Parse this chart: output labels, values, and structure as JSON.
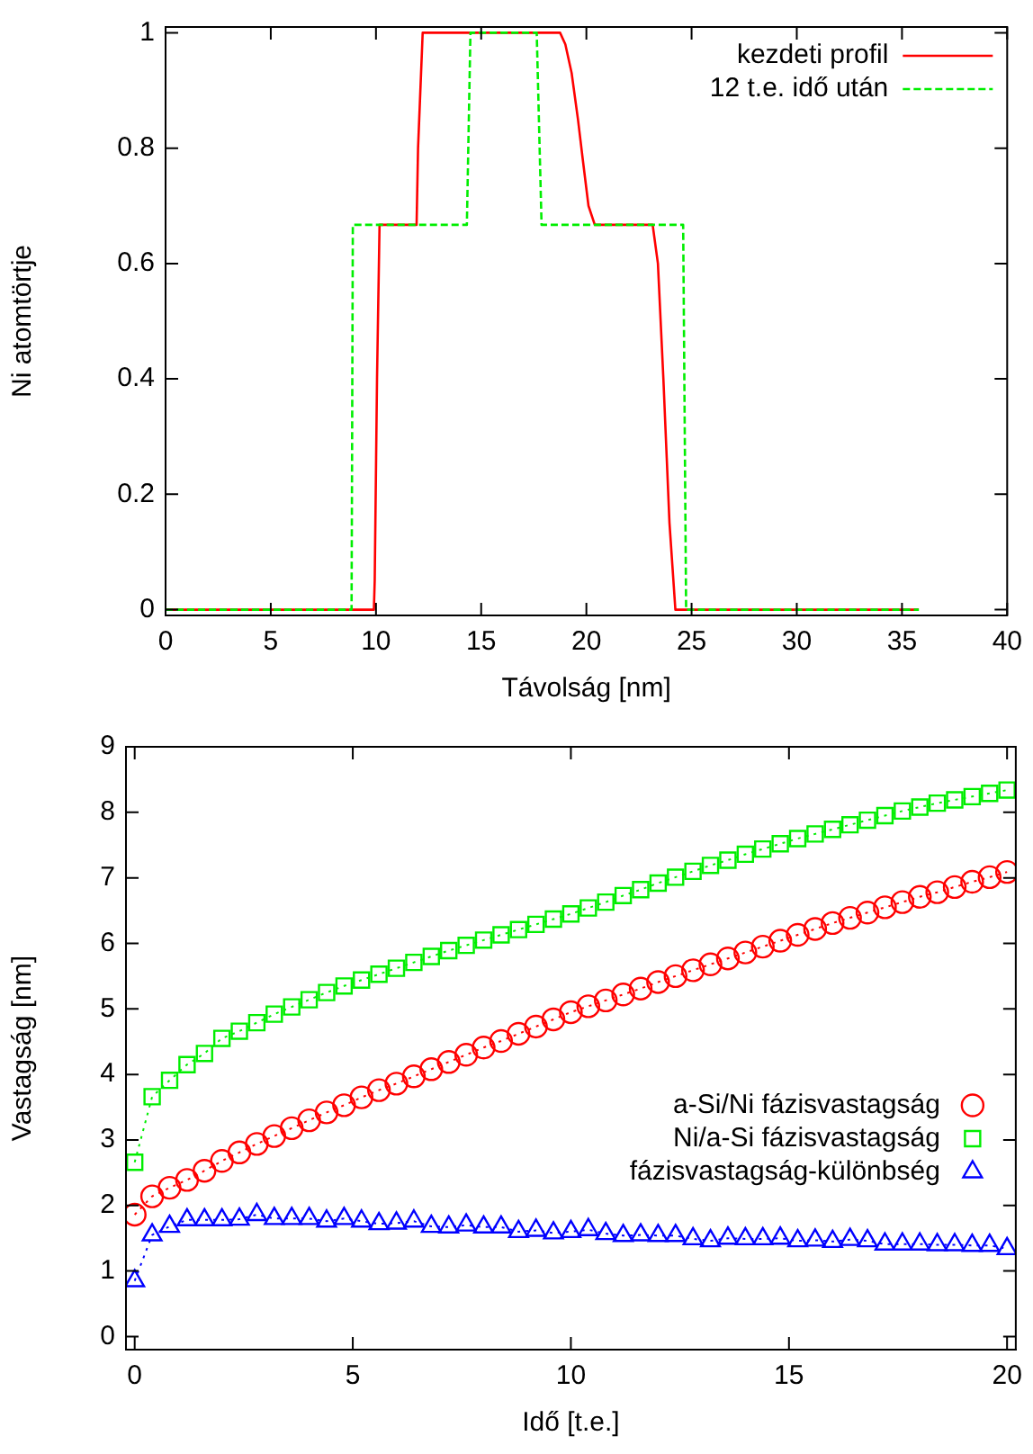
{
  "chart_data": [
    {
      "type": "line",
      "xlabel": "Távolság [nm]",
      "ylabel": "Ni atomtörtje",
      "xlim": [
        0,
        40
      ],
      "ylim": [
        -0.01,
        1.01
      ],
      "xticks": [
        0,
        5,
        10,
        15,
        20,
        25,
        30,
        35,
        40
      ],
      "yticks": [
        0,
        0.2,
        0.4,
        0.6,
        0.8,
        1
      ],
      "grid": false,
      "legend": "top right",
      "marker": "none",
      "series": [
        {
          "name": "kezdeti profil",
          "color": "#ff0000",
          "line_style": "solid",
          "x": [
            0,
            9.9,
            9.94,
            10.05,
            10.17,
            11.93,
            12.0,
            12.22,
            18.75,
            19.0,
            19.3,
            19.6,
            19.83,
            20.1,
            20.4,
            23.15,
            23.4,
            23.66,
            23.95,
            24.23,
            35.8
          ],
          "values": [
            0,
            0,
            0.05,
            0.4,
            0.667,
            0.667,
            0.8,
            1,
            1,
            0.98,
            0.93,
            0.85,
            0.78,
            0.7,
            0.667,
            0.667,
            0.6,
            0.4,
            0.15,
            0,
            0
          ]
        },
        {
          "name": "12 t.e. idő után",
          "color": "#00ee00",
          "line_style": "dashed",
          "x": [
            0,
            8.84,
            8.9,
            14.32,
            14.49,
            17.64,
            17.87,
            24.6,
            24.74,
            35.8
          ],
          "values": [
            0,
            0,
            0.667,
            0.667,
            1,
            1,
            0.667,
            0.667,
            0,
            0
          ]
        }
      ]
    },
    {
      "type": "line",
      "xlabel": "Idő [t.e.]",
      "ylabel": "Vastagság [nm]",
      "xlim": [
        -0.2,
        20.2
      ],
      "ylim": [
        -0.2,
        9
      ],
      "xticks": [
        0,
        5,
        10,
        15,
        20
      ],
      "yticks": [
        0,
        1,
        2,
        3,
        4,
        5,
        6,
        7,
        8,
        9
      ],
      "grid": false,
      "legend": "right",
      "line_style": "dotted",
      "x": [
        0,
        0.4,
        0.8,
        1.2,
        1.6,
        2,
        2.4,
        2.8,
        3.2,
        3.6,
        4,
        4.4,
        4.8,
        5.2,
        5.6,
        6,
        6.4,
        6.8,
        7.2,
        7.6,
        8,
        8.4,
        8.8,
        9.2,
        9.6,
        10,
        10.4,
        10.8,
        11.2,
        11.6,
        12,
        12.4,
        12.8,
        13.2,
        13.6,
        14,
        14.4,
        14.8,
        15.2,
        15.6,
        16,
        16.4,
        16.8,
        17.2,
        17.6,
        18,
        18.4,
        18.8,
        19.2,
        19.6,
        20
      ],
      "series": [
        {
          "name": "a-Si/Ni fázisvastagság",
          "color": "#ff0000",
          "marker": "circle",
          "values": [
            1.86,
            2.14,
            2.27,
            2.39,
            2.53,
            2.68,
            2.81,
            2.94,
            3.06,
            3.18,
            3.3,
            3.42,
            3.53,
            3.65,
            3.76,
            3.86,
            3.97,
            4.08,
            4.19,
            4.3,
            4.41,
            4.51,
            4.62,
            4.73,
            4.84,
            4.95,
            5.04,
            5.13,
            5.22,
            5.31,
            5.41,
            5.5,
            5.59,
            5.68,
            5.77,
            5.86,
            5.95,
            6.04,
            6.13,
            6.22,
            6.31,
            6.39,
            6.47,
            6.55,
            6.63,
            6.71,
            6.78,
            6.86,
            6.94,
            7.01,
            7.09
          ]
        },
        {
          "name": "Ni/a-Si fázisvastagság",
          "color": "#00ee00",
          "marker": "square",
          "values": [
            2.66,
            3.66,
            3.91,
            4.15,
            4.32,
            4.55,
            4.66,
            4.79,
            4.92,
            5.03,
            5.14,
            5.25,
            5.35,
            5.44,
            5.53,
            5.62,
            5.71,
            5.8,
            5.89,
            5.97,
            6.05,
            6.13,
            6.21,
            6.29,
            6.37,
            6.45,
            6.54,
            6.63,
            6.73,
            6.82,
            6.92,
            7.01,
            7.1,
            7.19,
            7.27,
            7.36,
            7.44,
            7.52,
            7.6,
            7.67,
            7.74,
            7.81,
            7.88,
            7.95,
            8.02,
            8.08,
            8.14,
            8.19,
            8.24,
            8.29,
            8.34
          ]
        },
        {
          "name": "fázisvastagság-különbség",
          "color": "#0000ff",
          "marker": "triangle",
          "values": [
            0.85,
            1.55,
            1.68,
            1.78,
            1.78,
            1.78,
            1.79,
            1.86,
            1.8,
            1.8,
            1.8,
            1.76,
            1.8,
            1.76,
            1.72,
            1.73,
            1.76,
            1.68,
            1.67,
            1.7,
            1.67,
            1.67,
            1.6,
            1.62,
            1.58,
            1.6,
            1.63,
            1.57,
            1.54,
            1.55,
            1.54,
            1.54,
            1.49,
            1.46,
            1.5,
            1.49,
            1.49,
            1.5,
            1.46,
            1.47,
            1.45,
            1.48,
            1.46,
            1.41,
            1.41,
            1.41,
            1.4,
            1.4,
            1.39,
            1.39,
            1.34
          ]
        }
      ]
    }
  ]
}
